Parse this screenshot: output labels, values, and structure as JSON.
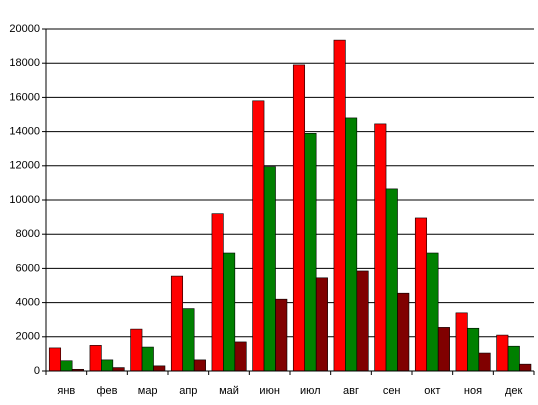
{
  "chart_data": {
    "type": "bar",
    "categories": [
      "янв",
      "фев",
      "мар",
      "апр",
      "май",
      "июн",
      "июл",
      "авг",
      "сен",
      "окт",
      "ноя",
      "дек"
    ],
    "series": [
      {
        "color": "#ff0000",
        "values": [
          1350,
          1500,
          2450,
          5550,
          9200,
          15800,
          17900,
          19350,
          14450,
          8950,
          3400,
          2100
        ]
      },
      {
        "color": "#008000",
        "values": [
          600,
          650,
          1400,
          3650,
          6900,
          11950,
          13900,
          14800,
          10650,
          6900,
          2500,
          1450
        ]
      },
      {
        "color": "#800000",
        "values": [
          100,
          200,
          300,
          650,
          1700,
          4200,
          5450,
          5850,
          4550,
          2550,
          1050,
          400
        ]
      }
    ],
    "ylim": [
      0,
      20000
    ],
    "yticks": [
      0,
      2000,
      4000,
      6000,
      8000,
      10000,
      12000,
      14000,
      16000,
      18000,
      20000
    ],
    "grid": true
  }
}
